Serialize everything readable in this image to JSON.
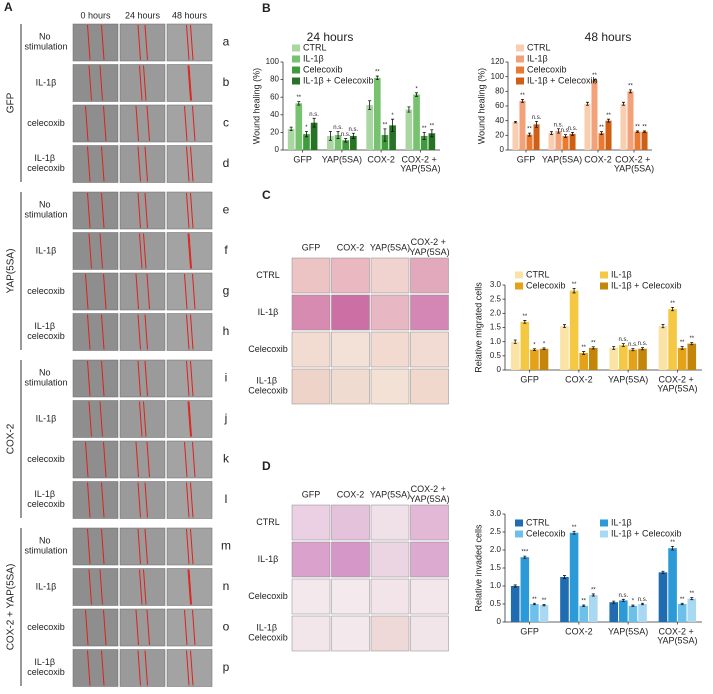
{
  "panel_a": {
    "label": "A",
    "columns": [
      "0 hours",
      "24 hours",
      "48 hours"
    ],
    "groups": [
      {
        "name": "GFP",
        "rows": [
          {
            "label": "No stimulation",
            "letter": "a"
          },
          {
            "label": "IL-1β",
            "letter": "b"
          },
          {
            "label": "celecoxib",
            "letter": "c"
          },
          {
            "label": "IL-1β celecoxib",
            "letter": "d"
          }
        ]
      },
      {
        "name": "YAP(5SA)",
        "rows": [
          {
            "label": "No stimulation",
            "letter": "e"
          },
          {
            "label": "IL-1β",
            "letter": "f"
          },
          {
            "label": "celecoxib",
            "letter": "g"
          },
          {
            "label": "IL-1β celecoxib",
            "letter": "h"
          }
        ]
      },
      {
        "name": "COX-2",
        "rows": [
          {
            "label": "No stimulation",
            "letter": "i"
          },
          {
            "label": "IL-1β",
            "letter": "j"
          },
          {
            "label": "celecoxib",
            "letter": "k"
          },
          {
            "label": "IL-1β celecoxib",
            "letter": "l"
          }
        ]
      },
      {
        "name": "COX-2 + YAP(5SA)",
        "rows": [
          {
            "label": "No stimulation",
            "letter": "m"
          },
          {
            "label": "IL-1β",
            "letter": "n"
          },
          {
            "label": "celecoxib",
            "letter": "o"
          },
          {
            "label": "IL-1β celecoxib",
            "letter": "p"
          }
        ]
      }
    ]
  },
  "panel_b": {
    "label": "B"
  },
  "panel_c": {
    "label": "C",
    "columns": [
      "GFP",
      "COX-2",
      "YAP(5SA)",
      "COX-2 + YAP(5SA)"
    ],
    "rows": [
      "CTRL",
      "IL-1β",
      "Celecoxib",
      "IL-1β Celecoxib"
    ]
  },
  "panel_d": {
    "label": "D",
    "columns": [
      "GFP",
      "COX-2",
      "YAP(5SA)",
      "COX-2 + YAP(5SA)"
    ],
    "rows": [
      "CTRL",
      "IL-1β",
      "Celecoxib",
      "IL-1β Celecoxib"
    ]
  },
  "chart_data": [
    {
      "type": "bar",
      "title": "24 hours",
      "y_label": "Wound healing (%)",
      "categories": [
        "GFP",
        "YAP(5SA)",
        "COX-2",
        "COX-2 + YAP(5SA)"
      ],
      "ylim": [
        0,
        100
      ],
      "yticks": [
        0,
        20,
        40,
        60,
        80,
        100
      ],
      "series": [
        {
          "name": "CTRL",
          "color": "#a9d6a1",
          "values": [
            24,
            16,
            51,
            46
          ],
          "errors": [
            2,
            5,
            5,
            3
          ]
        },
        {
          "name": "IL-1β",
          "color": "#76c26f",
          "values": [
            53,
            17,
            82,
            63
          ],
          "errors": [
            2,
            4,
            2,
            2
          ],
          "significance": [
            "**",
            "n.s.",
            "**",
            "*"
          ]
        },
        {
          "name": "Celecoxib",
          "color": "#3f9b3c",
          "values": [
            18,
            11,
            17,
            16
          ],
          "errors": [
            3,
            2,
            7,
            4
          ],
          "significance": [
            "*",
            "n.s.",
            "**",
            "**"
          ]
        },
        {
          "name": "IL-1β + Celecoxib",
          "color": "#267325",
          "values": [
            31,
            16,
            28,
            19
          ],
          "errors": [
            5,
            3,
            7,
            4
          ],
          "significance": [
            "n.s.",
            "n.s.",
            "*",
            "**"
          ]
        }
      ]
    },
    {
      "type": "bar",
      "title": "48 hours",
      "y_label": "Wound healing (%)",
      "categories": [
        "GFP",
        "YAP(5SA)",
        "COX-2",
        "COX-2 + YAP(5SA)"
      ],
      "ylim": [
        0,
        120
      ],
      "yticks": [
        0,
        20,
        40,
        60,
        80,
        100,
        120
      ],
      "series": [
        {
          "name": "CTRL",
          "color": "#f8cdb0",
          "values": [
            38,
            23,
            63,
            63
          ],
          "errors": [
            1,
            2,
            2,
            2
          ]
        },
        {
          "name": "IL-1β",
          "color": "#f3a178",
          "values": [
            67,
            26,
            95,
            80
          ],
          "errors": [
            2,
            3,
            1,
            2
          ],
          "significance": [
            "**",
            "n.s.",
            "**",
            "**"
          ]
        },
        {
          "name": "Celecoxib",
          "color": "#ea7a32",
          "values": [
            21,
            19,
            23,
            25
          ],
          "errors": [
            2,
            2,
            2,
            1
          ],
          "significance": [
            "**",
            "n.s.",
            "**",
            "**"
          ]
        },
        {
          "name": "IL-1β + Celecoxib",
          "color": "#cf5f15",
          "values": [
            35,
            22,
            40,
            25
          ],
          "errors": [
            4,
            2,
            2,
            1
          ],
          "significance": [
            "n.s.",
            "n.s.",
            "**",
            "**"
          ]
        }
      ]
    },
    {
      "type": "bar",
      "y_label": "Relative migrated cells",
      "categories": [
        "GFP",
        "COX-2",
        "YAP(5SA)",
        "COX-2 + YAP(5SA)"
      ],
      "ylim": [
        0,
        3
      ],
      "yticks": [
        0,
        0.5,
        {
          "value": 1,
          "label": "1.0"
        },
        1.5,
        {
          "value": 2,
          "label": "2.0"
        },
        2.5,
        {
          "value": 3,
          "label": "3.0"
        }
      ],
      "series": [
        {
          "name": "CTRL",
          "color": "#fbe2a5",
          "values": [
            1.0,
            1.55,
            0.78,
            1.55
          ],
          "errors": [
            0.06,
            0.05,
            0.05,
            0.06
          ]
        },
        {
          "name": "IL-1β",
          "color": "#f5c843",
          "values": [
            1.7,
            2.8,
            0.88,
            2.15
          ],
          "errors": [
            0.05,
            0.08,
            0.05,
            0.06
          ],
          "significance": [
            "**",
            "**",
            "n.s.",
            "**"
          ]
        },
        {
          "name": "Celecoxib",
          "color": "#e5a117",
          "values": [
            0.72,
            0.6,
            0.72,
            0.78
          ],
          "errors": [
            0.03,
            0.05,
            0.04,
            0.05
          ],
          "significance": [
            "*",
            "**",
            "n.s.",
            "**"
          ]
        },
        {
          "name": "IL-1β + Celecoxib",
          "color": "#c4860a",
          "values": [
            0.75,
            0.78,
            0.75,
            0.93
          ],
          "errors": [
            0.03,
            0.04,
            0.04,
            0.04
          ],
          "significance": [
            "*",
            "**",
            "n.s.",
            "**"
          ]
        }
      ]
    },
    {
      "type": "bar",
      "y_label": "Relative invaded cells",
      "categories": [
        "GFP",
        "COX-2",
        "YAP(5SA)",
        "COX-2 + YAP(5SA)"
      ],
      "ylim": [
        0,
        3
      ],
      "yticks": [
        0,
        0.5,
        {
          "value": 1,
          "label": "1.0"
        },
        1.5,
        {
          "value": 2,
          "label": "2.0"
        },
        2.5,
        {
          "value": 3,
          "label": "3.0"
        }
      ],
      "series": [
        {
          "name": "CTRL",
          "color": "#1f6db0",
          "values": [
            1.0,
            1.25,
            0.55,
            1.38
          ],
          "errors": [
            0.03,
            0.04,
            0.03,
            0.03
          ]
        },
        {
          "name": "IL-1β",
          "color": "#2c9ad6",
          "values": [
            1.8,
            2.48,
            0.6,
            2.05
          ],
          "errors": [
            0.03,
            0.04,
            0.03,
            0.05
          ],
          "significance": [
            "***",
            "**",
            "n.s.",
            "**"
          ]
        },
        {
          "name": "Celecoxib",
          "color": "#6cc0ea",
          "values": [
            0.5,
            0.45,
            0.45,
            0.5
          ],
          "errors": [
            0.02,
            0.02,
            0.02,
            0.02
          ],
          "significance": [
            "**",
            "**",
            "*",
            "**"
          ]
        },
        {
          "name": "IL-1β + Celecoxib",
          "color": "#a9d8f2",
          "values": [
            0.47,
            0.75,
            0.5,
            0.65
          ],
          "errors": [
            0.02,
            0.03,
            0.02,
            0.03
          ],
          "significance": [
            "**",
            "**",
            "n.s.",
            "**"
          ]
        }
      ]
    }
  ]
}
